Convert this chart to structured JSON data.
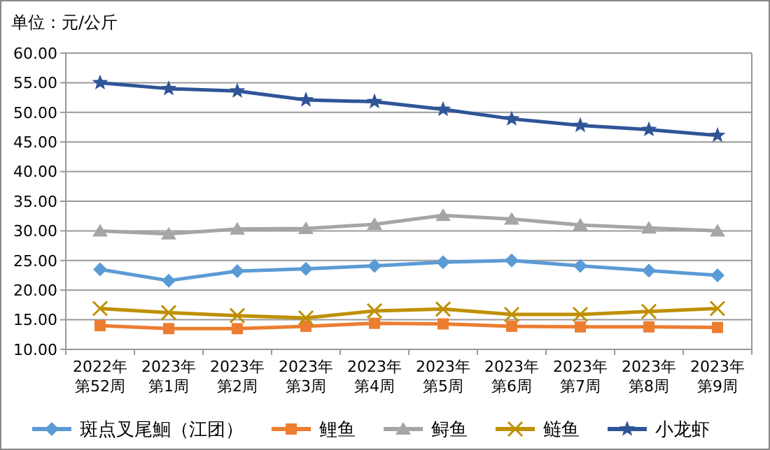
{
  "chart_data": {
    "type": "line",
    "ylabel": "单位：元/公斤",
    "categories": [
      "2022年第52周",
      "2023年第1周",
      "2023年第2周",
      "2023年第3周",
      "2023年第4周",
      "2023年第5周",
      "2023年第6周",
      "2023年第7周",
      "2023年第8周",
      "2023年第9周"
    ],
    "ylim": [
      10,
      60
    ],
    "yticks": [
      {
        "value": 10,
        "label": "10.00"
      },
      {
        "value": 15,
        "label": "15.00"
      },
      {
        "value": 20,
        "label": "20.00"
      },
      {
        "value": 25,
        "label": "25.00"
      },
      {
        "value": 30,
        "label": "30.00"
      },
      {
        "value": 35,
        "label": "35.00"
      },
      {
        "value": 40,
        "label": "40.00"
      },
      {
        "value": 45,
        "label": "45.00"
      },
      {
        "value": 50,
        "label": "50.00"
      },
      {
        "value": 55,
        "label": "55.00"
      },
      {
        "value": 60,
        "label": "60.00"
      }
    ],
    "grid": "y",
    "legend": "bottom",
    "series": [
      {
        "name": "斑点叉尾鮰（江团）",
        "color": "#5b9bd5",
        "marker": "diamond",
        "values": [
          23.5,
          21.6,
          23.2,
          23.6,
          24.1,
          24.7,
          25.0,
          24.1,
          23.3,
          22.5
        ]
      },
      {
        "name": "鲤鱼",
        "color": "#ed7d31",
        "marker": "square",
        "values": [
          14.0,
          13.5,
          13.5,
          13.9,
          14.4,
          14.3,
          13.9,
          13.8,
          13.8,
          13.7
        ]
      },
      {
        "name": "鲟鱼",
        "color": "#a5a5a5",
        "marker": "triangle",
        "values": [
          30.0,
          29.5,
          30.3,
          30.4,
          31.1,
          32.6,
          32.0,
          31.0,
          30.5,
          30.0
        ]
      },
      {
        "name": "鲢鱼",
        "color": "#bf9000",
        "marker": "cross",
        "values": [
          16.9,
          16.2,
          15.7,
          15.3,
          16.5,
          16.8,
          15.9,
          15.9,
          16.4,
          16.9
        ]
      },
      {
        "name": "小龙虾",
        "color": "#2f5597",
        "marker": "star",
        "values": [
          55.0,
          54.0,
          53.6,
          52.1,
          51.8,
          50.5,
          48.9,
          47.8,
          47.1,
          46.1
        ]
      }
    ]
  }
}
